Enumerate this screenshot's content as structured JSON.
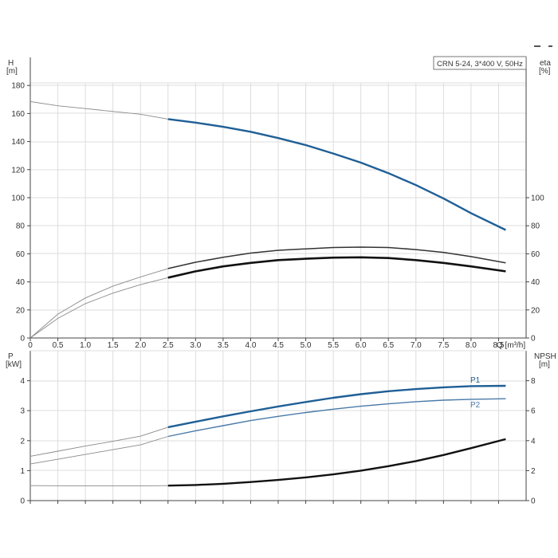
{
  "legend_box": "CRN 5-24, 3*400 V, 50Hz",
  "colors": {
    "blue": "#1f5f96",
    "blue_light": "#4a7aa8",
    "black": "#111111",
    "dark": "#333333",
    "gray": "#8a8a8a",
    "grid": "#dddddd",
    "axis": "#444444"
  },
  "chart_data": [
    {
      "id": "upper",
      "type": "line",
      "xlabel": "Q [m³/h]",
      "ylabel": "H",
      "ylabel_unit": "[m]",
      "y2label": "eta",
      "y2label_unit": "[%]",
      "xlim": [
        0,
        9
      ],
      "ylim": [
        0,
        200
      ],
      "y2lim": [
        0,
        200
      ],
      "x_ticks": [
        0,
        0.5,
        1.0,
        1.5,
        2.0,
        2.5,
        3.0,
        3.5,
        4.0,
        4.5,
        5.0,
        5.5,
        6.0,
        6.5,
        7.0,
        7.5,
        8.0,
        8.5
      ],
      "x_tick_labels": [
        "0",
        "0.5",
        "1.0",
        "1.5",
        "2.0",
        "2.5",
        "3.0",
        "3.5",
        "4.0",
        "4.5",
        "5.0",
        "5.5",
        "6.0",
        "6.5",
        "7.0",
        "7.5",
        "8.0",
        "8.5"
      ],
      "y_ticks": [
        0,
        20,
        40,
        60,
        80,
        100,
        120,
        140,
        160,
        180
      ],
      "y2_ticks": [
        0,
        20,
        40,
        60,
        80,
        100
      ],
      "grid": true,
      "series": [
        {
          "axis": "left",
          "points": [
            [
              0,
              168.5
            ],
            [
              0.5,
              165.5
            ],
            [
              1.0,
              163.5
            ],
            [
              1.5,
              161.5
            ],
            [
              2.0,
              159.5
            ],
            [
              2.5,
              156
            ],
            [
              3.0,
              153.5
            ],
            [
              3.5,
              150.5
            ],
            [
              4.0,
              147
            ],
            [
              4.5,
              142.5
            ],
            [
              5.0,
              137.5
            ],
            [
              5.5,
              131.5
            ],
            [
              6.0,
              125
            ],
            [
              6.5,
              117.5
            ],
            [
              7.0,
              109
            ],
            [
              7.5,
              99.5
            ],
            [
              8.0,
              89
            ],
            [
              8.63,
              77
            ]
          ],
          "thin_until": 2.5,
          "color_key": "blue",
          "stroke": 2.4
        },
        {
          "axis": "left",
          "points": [
            [
              0,
              0
            ],
            [
              0.5,
              17
            ],
            [
              1.0,
              28.5
            ],
            [
              1.5,
              37
            ],
            [
              2.0,
              43.5
            ],
            [
              2.5,
              49.5
            ],
            [
              3.0,
              54
            ],
            [
              3.5,
              57.5
            ],
            [
              4.0,
              60.5
            ],
            [
              4.5,
              62.5
            ],
            [
              5.0,
              63.5
            ],
            [
              5.5,
              64.5
            ],
            [
              6.0,
              64.8
            ],
            [
              6.5,
              64.5
            ],
            [
              7.0,
              63
            ],
            [
              7.5,
              61
            ],
            [
              8.0,
              58
            ],
            [
              8.63,
              53.5
            ]
          ],
          "thin_until": 2.5,
          "color_key": "dark",
          "stroke": 1.5
        },
        {
          "axis": "left",
          "points": [
            [
              0,
              0
            ],
            [
              0.5,
              14
            ],
            [
              1.0,
              24.5
            ],
            [
              1.5,
              32
            ],
            [
              2.0,
              38
            ],
            [
              2.5,
              43
            ],
            [
              3.0,
              47.5
            ],
            [
              3.5,
              51
            ],
            [
              4.0,
              53.5
            ],
            [
              4.5,
              55.5
            ],
            [
              5.0,
              56.5
            ],
            [
              5.5,
              57.3
            ],
            [
              6.0,
              57.5
            ],
            [
              6.5,
              57
            ],
            [
              7.0,
              55.5
            ],
            [
              7.5,
              53.5
            ],
            [
              8.0,
              51
            ],
            [
              8.63,
              47.5
            ]
          ],
          "thin_until": 2.5,
          "color_key": "black",
          "stroke": 2.6
        }
      ]
    },
    {
      "id": "lower",
      "type": "line",
      "ylabel": "P",
      "ylabel_unit": "[kW]",
      "y2label": "NPSH",
      "y2label_unit": "[m]",
      "xlim": [
        0,
        9
      ],
      "ylim": [
        0,
        5
      ],
      "y2lim": [
        0,
        10
      ],
      "y_ticks": [
        0,
        1,
        2,
        3,
        4
      ],
      "y2_ticks": [
        0,
        2,
        4,
        6,
        8
      ],
      "grid": true,
      "series": [
        {
          "name": "P1",
          "axis": "left",
          "points": [
            [
              0,
              1.48
            ],
            [
              0.5,
              1.65
            ],
            [
              1.0,
              1.82
            ],
            [
              1.5,
              1.98
            ],
            [
              2.0,
              2.15
            ],
            [
              2.5,
              2.45
            ],
            [
              3.0,
              2.63
            ],
            [
              3.5,
              2.81
            ],
            [
              4.0,
              2.98
            ],
            [
              4.5,
              3.14
            ],
            [
              5.0,
              3.29
            ],
            [
              5.5,
              3.43
            ],
            [
              6.0,
              3.55
            ],
            [
              6.5,
              3.65
            ],
            [
              7.0,
              3.72
            ],
            [
              7.5,
              3.78
            ],
            [
              8.0,
              3.82
            ],
            [
              8.63,
              3.83
            ]
          ],
          "thin_until": 2.5,
          "color_key": "blue",
          "stroke": 2.4
        },
        {
          "name": "P2",
          "axis": "left",
          "points": [
            [
              0,
              1.22
            ],
            [
              0.5,
              1.38
            ],
            [
              1.0,
              1.54
            ],
            [
              1.5,
              1.7
            ],
            [
              2.0,
              1.86
            ],
            [
              2.5,
              2.14
            ],
            [
              3.0,
              2.33
            ],
            [
              3.5,
              2.5
            ],
            [
              4.0,
              2.67
            ],
            [
              4.5,
              2.81
            ],
            [
              5.0,
              2.94
            ],
            [
              5.5,
              3.05
            ],
            [
              6.0,
              3.15
            ],
            [
              6.5,
              3.23
            ],
            [
              7.0,
              3.3
            ],
            [
              7.5,
              3.35
            ],
            [
              8.0,
              3.38
            ],
            [
              8.63,
              3.4
            ]
          ],
          "thin_until": 2.5,
          "color_key": "blue_light",
          "stroke": 1.4
        },
        {
          "axis": "right",
          "points": [
            [
              0,
              1.0
            ],
            [
              1.0,
              0.98
            ],
            [
              2.0,
              0.98
            ],
            [
              2.5,
              1.0
            ],
            [
              3.0,
              1.04
            ],
            [
              3.5,
              1.12
            ],
            [
              4.0,
              1.24
            ],
            [
              4.5,
              1.38
            ],
            [
              5.0,
              1.55
            ],
            [
              5.5,
              1.75
            ],
            [
              6.0,
              2.0
            ],
            [
              6.5,
              2.3
            ],
            [
              7.0,
              2.64
            ],
            [
              7.5,
              3.04
            ],
            [
              8.0,
              3.5
            ],
            [
              8.63,
              4.1
            ]
          ],
          "thin_until": 2.5,
          "color_key": "black",
          "stroke": 2.4
        }
      ]
    }
  ]
}
